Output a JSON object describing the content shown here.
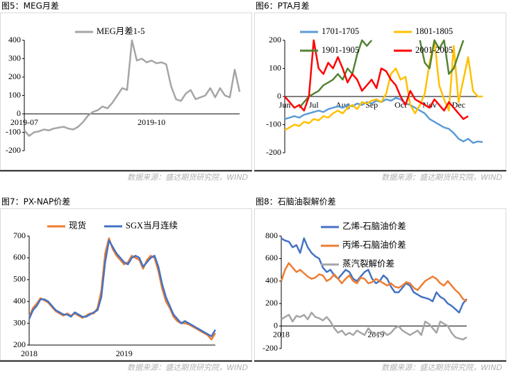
{
  "chart_data": [
    {
      "type": "line",
      "title": "图5：MEG月差",
      "source": "数据来源：盛达期货研究院，WIND",
      "categories": [
        "2019-07",
        null,
        null,
        null,
        null,
        null,
        null,
        null,
        null,
        null,
        null,
        null,
        null,
        null,
        null,
        null,
        null,
        null,
        null,
        null,
        null,
        null,
        null,
        null,
        null,
        null,
        "2019-10",
        null,
        null,
        null,
        null,
        null,
        null,
        null,
        null,
        null,
        null,
        null,
        null,
        null,
        null,
        null,
        null,
        null,
        null
      ],
      "ylim": [
        -200,
        400
      ],
      "yticks": [
        -200,
        -100,
        0,
        100,
        200,
        300,
        400
      ],
      "series": [
        {
          "name": "MEG月差1-5",
          "color": "#a5a5a5",
          "values": [
            -90,
            -120,
            -100,
            -95,
            -85,
            -90,
            -80,
            -75,
            -70,
            -80,
            -85,
            -70,
            -45,
            -10,
            10,
            20,
            40,
            30,
            60,
            100,
            140,
            130,
            400,
            290,
            300,
            280,
            290,
            275,
            280,
            270,
            150,
            80,
            70,
            110,
            130,
            80,
            90,
            100,
            140,
            90,
            140,
            100,
            90,
            240,
            120
          ]
        }
      ]
    },
    {
      "type": "line",
      "title": "图6：PTA月差",
      "source": "数据来源：盛达期货研究院，WIND",
      "categories": [
        "Jun",
        null,
        null,
        null,
        null,
        null,
        "Jul",
        null,
        null,
        null,
        null,
        null,
        "Aug",
        null,
        null,
        null,
        null,
        null,
        "Sep",
        null,
        null,
        null,
        null,
        null,
        "Oct",
        null,
        null,
        null,
        null,
        null,
        "Nov",
        null,
        null,
        null,
        null,
        null,
        "Dec",
        null,
        null,
        null,
        null,
        null
      ],
      "ylim": [
        -200,
        200
      ],
      "yticks": [
        -200,
        -100,
        0,
        100,
        200
      ],
      "series": [
        {
          "name": "1701-1705",
          "color": "#5b9bd5",
          "values": [
            -80,
            -75,
            -70,
            -75,
            -65,
            -60,
            -55,
            -50,
            -55,
            -45,
            -40,
            -35,
            -40,
            -30,
            -35,
            -25,
            -30,
            -20,
            -25,
            -15,
            -20,
            -10,
            -15,
            -5,
            -10,
            -25,
            -30,
            -40,
            -50,
            -60,
            -80,
            -90,
            -100,
            -110,
            -115,
            -130,
            -150,
            -160,
            -150,
            -165,
            -160,
            -162
          ]
        },
        {
          "name": "1801-1805",
          "color": "#ffc000",
          "values": [
            -120,
            -110,
            -100,
            -105,
            -90,
            -95,
            -80,
            -85,
            -70,
            -75,
            -60,
            -50,
            -60,
            -40,
            -30,
            -45,
            -20,
            -25,
            -15,
            -10,
            -20,
            10,
            80,
            100,
            60,
            70,
            -30,
            -60,
            -30,
            10,
            120,
            200,
            40,
            -10,
            -50,
            180,
            -20,
            60,
            140,
            20,
            0,
            0
          ]
        },
        {
          "name": "1901-1905",
          "color": "#548235",
          "values": [
            null,
            null,
            null,
            -40,
            -20,
            0,
            10,
            20,
            40,
            50,
            60,
            80,
            60,
            100,
            80,
            150,
            200,
            180,
            200,
            null,
            null,
            null,
            null,
            null,
            null,
            null,
            null,
            null,
            200,
            120,
            100,
            200,
            170,
            200,
            80,
            100,
            150,
            200,
            null,
            null,
            null,
            null
          ]
        },
        {
          "name": "2001-2005",
          "color": "#ff0000",
          "values": [
            0,
            -20,
            -40,
            -30,
            -50,
            0,
            200,
            100,
            80,
            120,
            100,
            140,
            100,
            50,
            80,
            60,
            20,
            40,
            60,
            30,
            100,
            90,
            60,
            40,
            0,
            -30,
            20,
            -10,
            -20,
            -30,
            -40,
            -10,
            -30,
            -50,
            -20,
            -40,
            -60,
            -80,
            -70,
            null,
            null,
            null
          ]
        }
      ]
    },
    {
      "type": "line",
      "title": "图7：PX-NAP价差",
      "source": "数据来源：盛达期货研究院，WIND",
      "categories": [
        "2018",
        null,
        null,
        null,
        null,
        null,
        null,
        null,
        null,
        null,
        null,
        null,
        null,
        null,
        null,
        null,
        null,
        null,
        null,
        null,
        null,
        null,
        null,
        null,
        null,
        "2019",
        null,
        null,
        null,
        null,
        null,
        null,
        null,
        null,
        null,
        null,
        null,
        null,
        null,
        null,
        null,
        null,
        null,
        null,
        null,
        null,
        null,
        null,
        null,
        null
      ],
      "ylim": [
        200,
        700
      ],
      "yticks": [
        200,
        300,
        400,
        500,
        600,
        700
      ],
      "series": [
        {
          "name": "现货",
          "color": "#ed7d31",
          "values": [
            330,
            370,
            390,
            415,
            405,
            395,
            375,
            355,
            345,
            335,
            345,
            335,
            345,
            335,
            325,
            335,
            345,
            345,
            370,
            450,
            620,
            690,
            640,
            610,
            590,
            570,
            580,
            610,
            600,
            590,
            550,
            590,
            610,
            600,
            540,
            460,
            400,
            370,
            330,
            310,
            300,
            300,
            295,
            285,
            275,
            265,
            255,
            245,
            225,
            255
          ]
        },
        {
          "name": "SGX当月连续",
          "color": "#4472c4",
          "values": [
            320,
            360,
            380,
            410,
            410,
            400,
            380,
            360,
            350,
            340,
            340,
            330,
            350,
            340,
            330,
            330,
            340,
            350,
            360,
            420,
            580,
            680,
            650,
            620,
            600,
            580,
            570,
            600,
            610,
            600,
            560,
            580,
            600,
            610,
            560,
            480,
            420,
            380,
            340,
            320,
            300,
            310,
            300,
            290,
            280,
            270,
            260,
            250,
            240,
            270
          ]
        }
      ]
    },
    {
      "type": "line",
      "title": "图8：石脑油裂解价差",
      "source": "数据来源：盛达期货研究院，WIND",
      "categories": [
        "2018",
        null,
        null,
        null,
        null,
        null,
        null,
        null,
        null,
        null,
        null,
        null,
        null,
        null,
        null,
        null,
        null,
        null,
        null,
        null,
        null,
        null,
        null,
        null,
        null,
        "2019",
        null,
        null,
        null,
        null,
        null,
        null,
        null,
        null,
        null,
        null,
        null,
        null,
        null,
        null,
        null,
        null,
        null,
        null,
        null,
        null,
        null,
        null,
        null,
        null
      ],
      "ylim": [
        -200,
        800
      ],
      "yticks": [
        -200,
        0,
        200,
        400,
        600,
        800
      ],
      "series": [
        {
          "name": "乙烯-石脑油价差",
          "color": "#4472c4",
          "values": [
            780,
            760,
            750,
            700,
            720,
            650,
            780,
            700,
            650,
            620,
            600,
            520,
            480,
            500,
            450,
            420,
            460,
            500,
            480,
            420,
            400,
            440,
            480,
            500,
            420,
            380,
            400,
            450,
            420,
            350,
            300,
            300,
            340,
            380,
            360,
            300,
            280,
            260,
            250,
            240,
            220,
            300,
            260,
            240,
            200,
            180,
            150,
            120,
            200,
            240
          ]
        },
        {
          "name": "丙烯-石脑油价差",
          "color": "#ed7d31",
          "values": [
            400,
            500,
            560,
            520,
            480,
            500,
            470,
            440,
            420,
            430,
            460,
            450,
            400,
            420,
            460,
            420,
            380,
            420,
            450,
            400,
            380,
            430,
            420,
            380,
            390,
            420,
            400,
            380,
            360,
            380,
            350,
            340,
            360,
            390,
            380,
            340,
            320,
            360,
            400,
            420,
            440,
            420,
            380,
            360,
            400,
            360,
            320,
            290,
            240,
            220
          ]
        },
        {
          "name": "蒸汽裂解价差",
          "color": "#a5a5a5",
          "values": [
            60,
            80,
            100,
            40,
            90,
            80,
            100,
            60,
            120,
            80,
            70,
            50,
            80,
            40,
            -20,
            -60,
            -40,
            -80,
            -60,
            -80,
            -40,
            -60,
            -80,
            -20,
            -60,
            -80,
            -60,
            -50,
            -80,
            -60,
            -20,
            0,
            -40,
            -60,
            -80,
            -60,
            -40,
            -80,
            40,
            20,
            -20,
            -60,
            40,
            20,
            0,
            -60,
            -100,
            -110,
            -120,
            -100
          ]
        }
      ]
    }
  ]
}
